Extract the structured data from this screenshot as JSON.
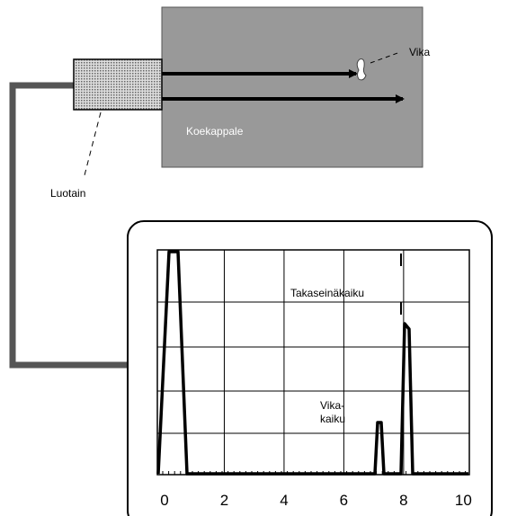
{
  "labels": {
    "flaw": "Vika",
    "specimen": "Koekappale",
    "probe": "Luotain",
    "back_echo": "Takaseinäkaiku",
    "flaw_echo": [
      "Vika-",
      "kaiku"
    ]
  },
  "screen": {
    "xlim": [
      -0.24,
      10.2
    ],
    "xticks": [
      0,
      2,
      4,
      6,
      8,
      10
    ]
  }
}
